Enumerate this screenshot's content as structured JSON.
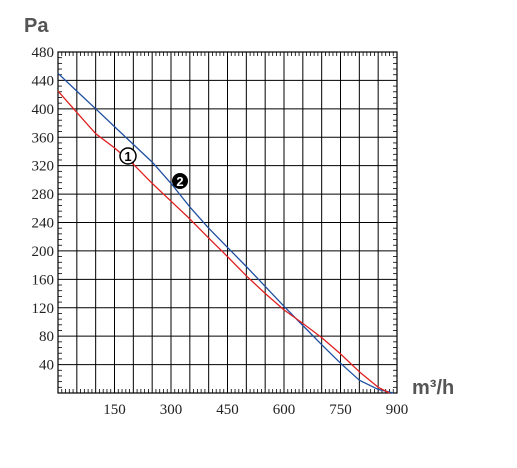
{
  "chart_data": {
    "type": "line",
    "ylabel": "Pa",
    "xlabel": "m³/h",
    "xlim": [
      0,
      900
    ],
    "ylim": [
      0,
      480
    ],
    "x_ticks": [
      150,
      300,
      450,
      600,
      750,
      900
    ],
    "y_ticks": [
      40,
      80,
      120,
      160,
      200,
      240,
      280,
      320,
      360,
      400,
      440,
      480
    ],
    "grid": true,
    "series": [
      {
        "marker": "1",
        "color": "#1f4fa0",
        "x": [
          0,
          50,
          100,
          150,
          200,
          250,
          300,
          350,
          400,
          450,
          500,
          550,
          600,
          650,
          700,
          750,
          800,
          850,
          890
        ],
        "y": [
          450,
          425,
          400,
          375,
          350,
          325,
          295,
          262,
          232,
          205,
          178,
          150,
          122,
          95,
          68,
          42,
          18,
          5,
          0
        ]
      },
      {
        "marker": "2",
        "color": "#e02020",
        "x": [
          0,
          50,
          100,
          150,
          200,
          250,
          300,
          350,
          400,
          450,
          500,
          550,
          600,
          650,
          700,
          750,
          800,
          850,
          880
        ],
        "y": [
          425,
          395,
          365,
          345,
          322,
          295,
          270,
          245,
          218,
          192,
          165,
          140,
          117,
          98,
          78,
          55,
          30,
          8,
          0
        ]
      }
    ]
  }
}
